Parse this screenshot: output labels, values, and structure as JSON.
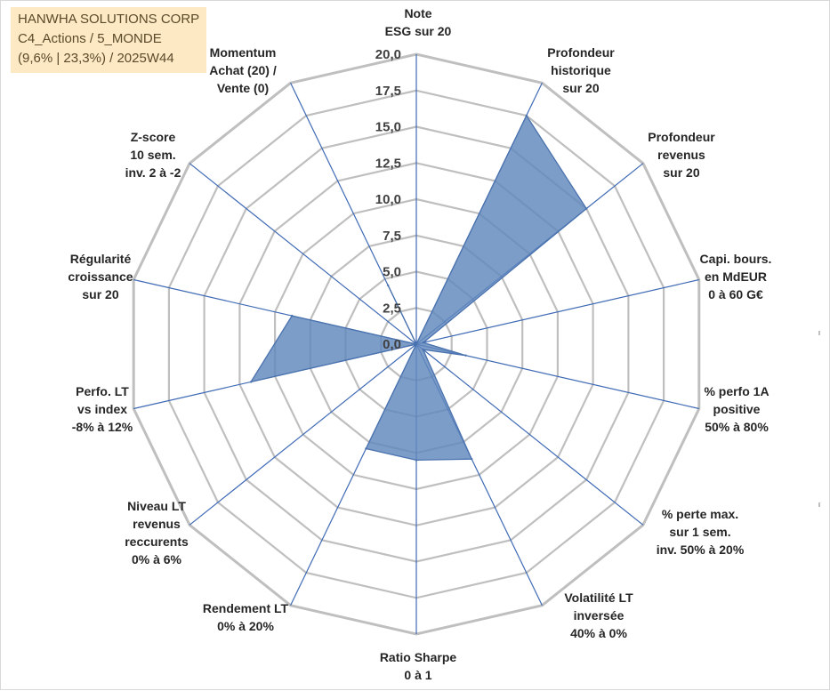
{
  "title_box": {
    "line1": "HANWHA SOLUTIONS CORP",
    "line2": "C4_Actions / 5_MONDE",
    "line3": "(9,6% | 23,3%) / 2025W44"
  },
  "chart_data": {
    "type": "radar",
    "title": "HANWHA SOLUTIONS CORP",
    "subtitle": "C4_Actions / 5_MONDE (9,6% | 23,3%) / 2025W44",
    "range": [
      0,
      20
    ],
    "tick_step": 2.5,
    "tick_labels": [
      "0,0",
      "2,5",
      "5,0",
      "7,5",
      "10,0",
      "12,5",
      "15,0",
      "17,5",
      "20,0"
    ],
    "axes": [
      [
        "Note",
        "ESG sur 20"
      ],
      [
        "Profondeur",
        "historique",
        "sur 20"
      ],
      [
        "Profondeur",
        "revenus",
        "sur 20"
      ],
      [
        "Capi. bours.",
        "en MdEUR",
        "0 à 60 G€"
      ],
      [
        "% perfo 1A",
        "positive",
        "50% à 80%"
      ],
      [
        "% perte max.",
        "sur 1 sem.",
        "inv. 50% à 20%"
      ],
      [
        "Volatilité LT",
        "inversée",
        "40% à 0%"
      ],
      [
        "Ratio Sharpe",
        "0 à 1"
      ],
      [
        "Rendement LT",
        "0% à 20%"
      ],
      [
        "Niveau LT",
        "revenus",
        "reccurents",
        "0% à 6%"
      ],
      [
        "Perfo. LT",
        "vs index",
        "-8% à 12%"
      ],
      [
        "Régularité",
        "croissance",
        "sur 20"
      ],
      [
        "Z-score",
        "10 sem.",
        "inv. 2 à -2"
      ],
      [
        "Momentum",
        "Achat (20) /",
        "Vente (0)"
      ]
    ],
    "series": [
      {
        "name": "HANWHA SOLUTIONS CORP",
        "values": [
          0,
          17.5,
          15.0,
          0.5,
          3.5,
          0.6,
          8.8,
          8.0,
          8.0,
          0,
          11.7,
          8.8,
          0,
          4.5
        ],
        "color": "#4a72ae"
      }
    ],
    "colors": {
      "grid": "#bfbfbf",
      "spoke": "#3f6ab5",
      "fill": "#6088bd"
    }
  }
}
